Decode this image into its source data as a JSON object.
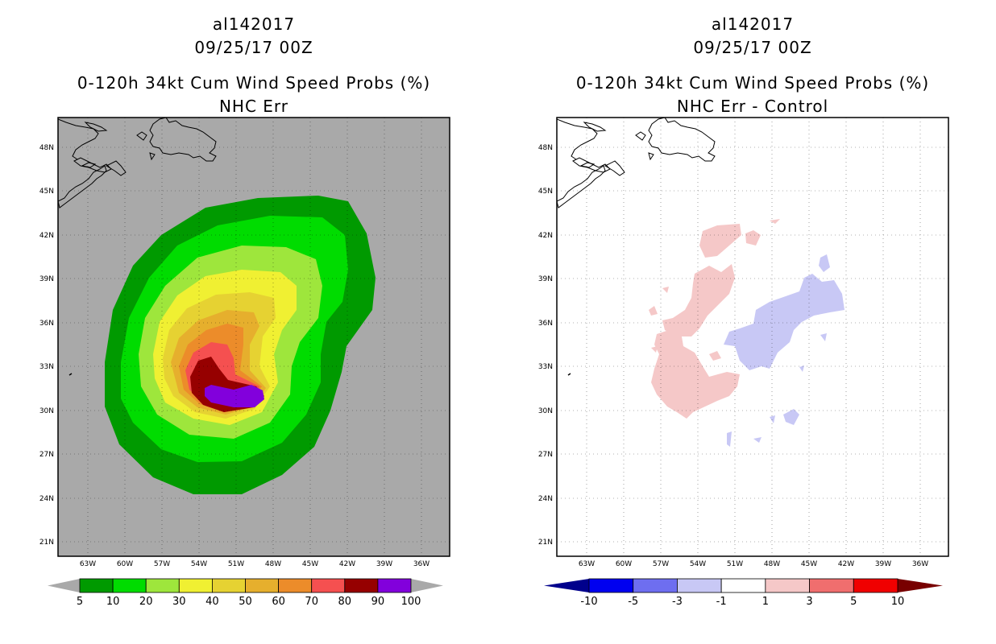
{
  "left": {
    "storm_id": "al142017",
    "datetime": "09/25/17 00Z",
    "product": "0-120h 34kt Cum Wind Speed Probs (%)",
    "subtitle": "NHC Err",
    "background": "#a9a9a9",
    "colorbar": {
      "labels": [
        "5",
        "10",
        "20",
        "30",
        "40",
        "50",
        "60",
        "70",
        "80",
        "90",
        "100"
      ],
      "colors": [
        "#009a00",
        "#00dc00",
        "#9ee63c",
        "#f0f032",
        "#e6d232",
        "#e6af2d",
        "#ec8c2a",
        "#f55050",
        "#960000",
        "#8200dc"
      ],
      "arrow_colors": [
        "#a9a9a9",
        "#a9a9a9"
      ]
    }
  },
  "right": {
    "storm_id": "al142017",
    "datetime": "09/25/17 00Z",
    "product": "0-120h 34kt Cum Wind Speed Probs (%)",
    "subtitle": "NHC Err - Control",
    "background": "#ffffff",
    "colorbar": {
      "labels": [
        "-10",
        "-5",
        "-3",
        "-1",
        "1",
        "3",
        "5",
        "10"
      ],
      "colors": [
        "#0000f0",
        "#6e6ef0",
        "#c8c8f5",
        "#ffffff",
        "#f5c8c8",
        "#f06e6e",
        "#f00000"
      ],
      "arrow_colors": [
        "#00008c",
        "#780000"
      ]
    }
  },
  "axes": {
    "lat_labels": [
      "48N",
      "45N",
      "42N",
      "39N",
      "36N",
      "33N",
      "30N",
      "27N",
      "24N",
      "21N"
    ],
    "lon_labels": [
      "63W",
      "60W",
      "57W",
      "54W",
      "51W",
      "48W",
      "45W",
      "42W",
      "39W",
      "36W"
    ]
  }
}
